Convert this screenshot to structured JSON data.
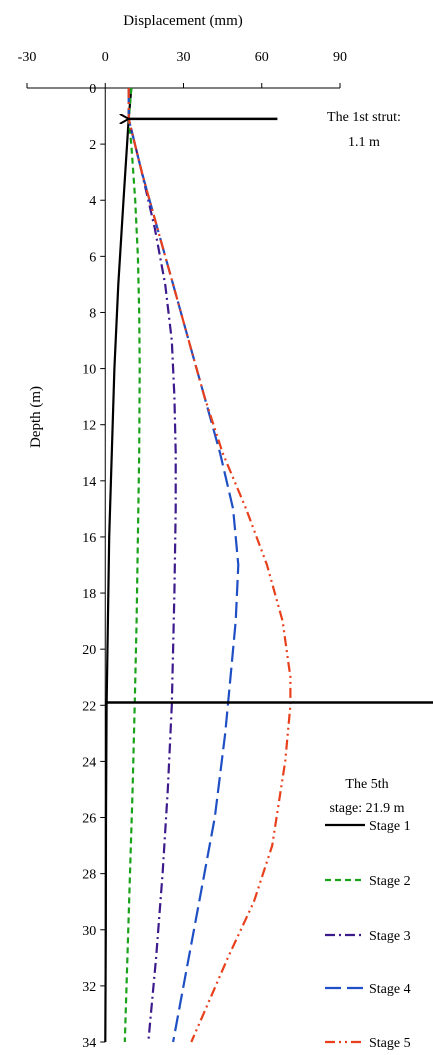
{
  "chart_data": {
    "type": "line",
    "xlabel": "Displacement (mm)",
    "ylabel": "Depth (m)",
    "xlim": [
      -30,
      90
    ],
    "ylim": [
      0,
      34
    ],
    "y_inverted": true,
    "x_axis_position": "top",
    "x_ticks": [
      -30,
      0,
      30,
      60,
      90
    ],
    "y_ticks": [
      0,
      2,
      4,
      6,
      8,
      10,
      12,
      14,
      16,
      18,
      20,
      22,
      24,
      26,
      28,
      30,
      32,
      34
    ],
    "grid": false,
    "legend_position": "bottom-right",
    "series": [
      {
        "name": "Stage 1",
        "color": "#000000",
        "dash": "solid",
        "points": [
          [
            10,
            0
          ],
          [
            9,
            1.1
          ],
          [
            7,
            4
          ],
          [
            5,
            7
          ],
          [
            3.5,
            10
          ],
          [
            2.5,
            13
          ],
          [
            1.5,
            16
          ],
          [
            1,
            19
          ],
          [
            0.5,
            22
          ],
          [
            0.3,
            26
          ],
          [
            0.2,
            30
          ],
          [
            0,
            34
          ]
        ]
      },
      {
        "name": "Stage 2",
        "color": "#1aa31a",
        "dash": "dashed",
        "points": [
          [
            10,
            0
          ],
          [
            9,
            1.1
          ],
          [
            10,
            2
          ],
          [
            11.5,
            4
          ],
          [
            12.5,
            6
          ],
          [
            13,
            8
          ],
          [
            13.2,
            10
          ],
          [
            13,
            13
          ],
          [
            12.5,
            16
          ],
          [
            12,
            19
          ],
          [
            11.3,
            22
          ],
          [
            10.5,
            25
          ],
          [
            9.5,
            28
          ],
          [
            8.5,
            31
          ],
          [
            7.5,
            34
          ]
        ]
      },
      {
        "name": "Stage 3",
        "color": "#3d1a8c",
        "dash": "dashdot",
        "points": [
          [
            9,
            0
          ],
          [
            9,
            1.1
          ],
          [
            14,
            3
          ],
          [
            19,
            5
          ],
          [
            23,
            7
          ],
          [
            25.5,
            9
          ],
          [
            26.5,
            11
          ],
          [
            27,
            13
          ],
          [
            27,
            15
          ],
          [
            26.5,
            18
          ],
          [
            26,
            20
          ],
          [
            25.5,
            22
          ],
          [
            24,
            25
          ],
          [
            22,
            28
          ],
          [
            19.5,
            31
          ],
          [
            16.5,
            34
          ]
        ]
      },
      {
        "name": "Stage 4",
        "color": "#1f4fc4",
        "dash": "longdash",
        "points": [
          [
            9,
            0
          ],
          [
            9,
            1.1
          ],
          [
            14,
            3
          ],
          [
            20,
            5
          ],
          [
            26,
            7
          ],
          [
            32,
            9
          ],
          [
            38,
            11
          ],
          [
            44,
            13
          ],
          [
            49,
            15
          ],
          [
            51,
            17
          ],
          [
            50,
            19
          ],
          [
            48,
            21
          ],
          [
            46,
            23
          ],
          [
            42,
            26
          ],
          [
            36,
            29
          ],
          [
            30,
            32
          ],
          [
            26,
            34
          ]
        ]
      },
      {
        "name": "Stage 5",
        "color": "#e8401c",
        "dash": "dashdotdot",
        "points": [
          [
            9,
            0
          ],
          [
            9,
            1.1
          ],
          [
            14,
            3
          ],
          [
            20,
            5
          ],
          [
            26,
            7
          ],
          [
            32,
            9
          ],
          [
            38,
            11
          ],
          [
            45,
            13
          ],
          [
            54,
            15
          ],
          [
            62,
            17
          ],
          [
            68,
            19
          ],
          [
            71,
            21
          ],
          [
            71,
            22
          ],
          [
            69,
            24
          ],
          [
            64,
            27
          ],
          [
            57,
            29
          ],
          [
            47,
            31
          ],
          [
            40,
            32.5
          ],
          [
            33,
            34
          ]
        ]
      }
    ],
    "annotations": [
      {
        "text_lines": [
          "The 1st strut:",
          "1.1 m"
        ],
        "depth": 1.1,
        "kind": "arrow",
        "arrow_from_x": 66,
        "arrow_to_x": 9
      },
      {
        "text_lines": [
          "The 5th",
          "stage: 21.9 m"
        ],
        "depth": 21.9,
        "kind": "line"
      }
    ]
  }
}
